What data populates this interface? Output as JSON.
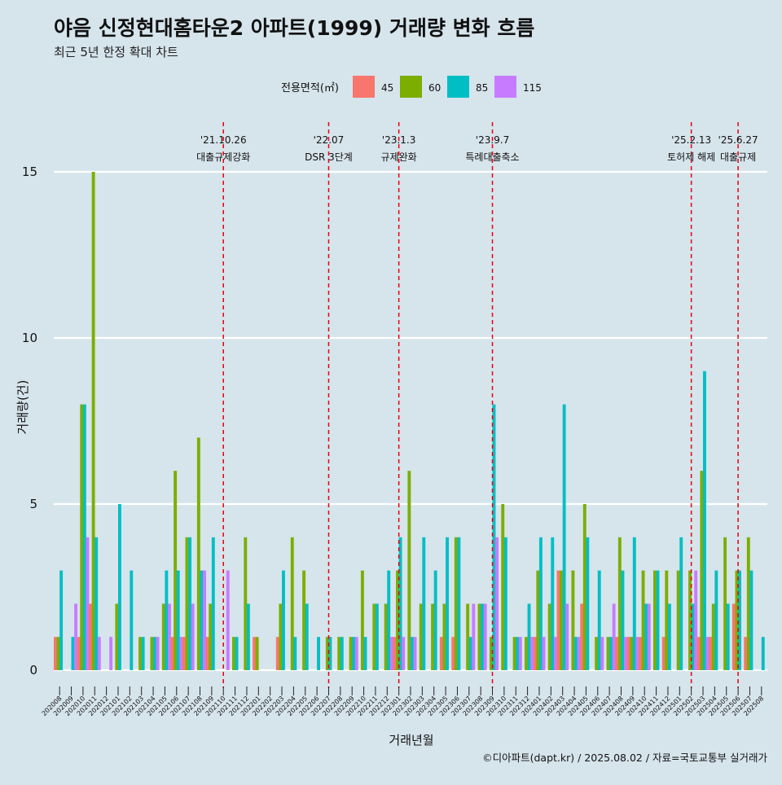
{
  "colors": {
    "45": "#f8766d",
    "60": "#7cae00",
    "85": "#00bfc4",
    "115": "#c77cff",
    "background": "#d6e4ec",
    "event_line": "#e8000b",
    "grid": "#ffffff"
  },
  "chart_data": {
    "type": "bar",
    "title": "야음 신정현대홈타운2 아파트(1999) 거래량 변화 흐름",
    "subtitle": "최근 5년 한정 확대 차트",
    "xlabel": "거래년월",
    "ylabel": "거래량(건)",
    "caption": "©디아파트(dapt.kr) / 2025.08.02 / 자료=국토교통부 실거래가",
    "legend_title": "전용면적(㎡)",
    "legend_position": "top",
    "grid": true,
    "ylim": [
      0,
      16
    ],
    "yticks": [
      0,
      5,
      10,
      15
    ],
    "categories": [
      "202008",
      "202009",
      "202010",
      "202011",
      "202012",
      "202101",
      "202102",
      "202103",
      "202104",
      "202105",
      "202106",
      "202107",
      "202108",
      "202109",
      "202110",
      "202111",
      "202112",
      "202201",
      "202202",
      "202203",
      "202204",
      "202205",
      "202206",
      "202207",
      "202208",
      "202209",
      "202210",
      "202211",
      "202212",
      "202301",
      "202302",
      "202303",
      "202304",
      "202305",
      "202306",
      "202307",
      "202308",
      "202309",
      "202310",
      "202311",
      "202312",
      "202401",
      "202402",
      "202403",
      "202404",
      "202405",
      "202406",
      "202407",
      "202408",
      "202409",
      "202410",
      "202411",
      "202412",
      "202501",
      "202502",
      "202503",
      "202504",
      "202505",
      "202506",
      "202507",
      "202508"
    ],
    "series": [
      {
        "name": "45",
        "values": [
          1,
          0,
          1,
          2,
          0,
          0,
          0,
          0,
          0,
          0,
          1,
          1,
          0,
          1,
          0,
          0,
          0,
          1,
          0,
          1,
          0,
          0,
          0,
          0,
          0,
          0,
          0,
          0,
          0,
          1,
          0,
          0,
          0,
          1,
          1,
          0,
          0,
          0,
          0,
          0,
          0,
          1,
          0,
          3,
          0,
          2,
          0,
          0,
          1,
          1,
          1,
          0,
          1,
          0,
          0,
          1,
          1,
          0,
          2,
          1,
          0
        ]
      },
      {
        "name": "60",
        "values": [
          1,
          0,
          8,
          15,
          0,
          2,
          0,
          1,
          1,
          2,
          6,
          4,
          7,
          2,
          0,
          1,
          4,
          1,
          0,
          2,
          4,
          3,
          0,
          1,
          1,
          1,
          3,
          2,
          2,
          3,
          6,
          2,
          2,
          2,
          4,
          2,
          2,
          1,
          5,
          1,
          1,
          3,
          2,
          3,
          3,
          5,
          1,
          1,
          4,
          1,
          3,
          3,
          3,
          3,
          3,
          6,
          2,
          4,
          3,
          4,
          0
        ]
      },
      {
        "name": "85",
        "values": [
          3,
          1,
          8,
          4,
          0,
          5,
          3,
          1,
          1,
          3,
          3,
          4,
          3,
          4,
          0,
          1,
          2,
          0,
          0,
          3,
          1,
          2,
          1,
          1,
          1,
          1,
          1,
          2,
          3,
          4,
          1,
          4,
          3,
          4,
          4,
          1,
          2,
          8,
          4,
          1,
          2,
          4,
          4,
          8,
          1,
          4,
          3,
          1,
          3,
          4,
          2,
          3,
          2,
          4,
          2,
          9,
          3,
          2,
          3,
          3,
          1
        ]
      },
      {
        "name": "115",
        "values": [
          0,
          2,
          4,
          1,
          1,
          0,
          0,
          0,
          1,
          2,
          1,
          2,
          3,
          0,
          3,
          0,
          0,
          0,
          0,
          0,
          0,
          0,
          0,
          0,
          0,
          1,
          0,
          0,
          1,
          1,
          1,
          0,
          0,
          0,
          0,
          2,
          2,
          4,
          0,
          1,
          1,
          1,
          1,
          2,
          1,
          0,
          1,
          2,
          1,
          1,
          2,
          0,
          0,
          0,
          3,
          1,
          0,
          0,
          0,
          0,
          0
        ]
      }
    ],
    "events": [
      {
        "date": "202110",
        "line1": "'21.10.26",
        "line2": "대출규제강화"
      },
      {
        "date": "202207",
        "line1": "'22.07",
        "line2": "DSR 3단계"
      },
      {
        "date": "202301",
        "line1": "'23.1.3",
        "line2": "규제완화"
      },
      {
        "date": "202309",
        "line1": "'23.9.7",
        "line2": "특례대출축소"
      },
      {
        "date": "202502",
        "line1": "'25.2.13",
        "line2": "토허제 해제"
      },
      {
        "date": "202506",
        "line1": "'25.6.27",
        "line2": "대출규제"
      }
    ]
  }
}
